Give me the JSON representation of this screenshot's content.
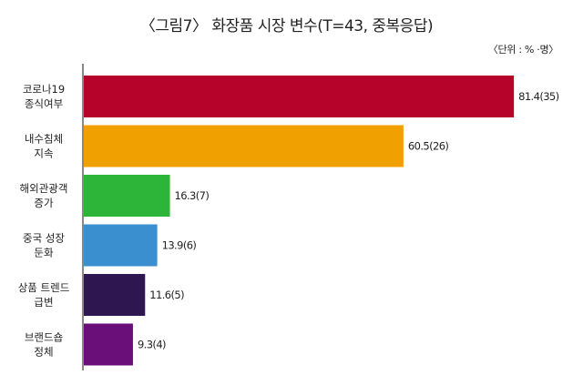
{
  "title": "〈그림7〉 화장품 시장 변수(T=43, 중복응답)",
  "unit": "〈단위 : % ·명〉",
  "chart_data": {
    "type": "bar",
    "orientation": "horizontal",
    "title": "〈그림7〉 화장품 시장 변수(T=43, 중복응답)",
    "categories": [
      [
        "코로나19",
        "종식여부"
      ],
      [
        "내수침체",
        "지속"
      ],
      [
        "해외관광객",
        "증가"
      ],
      [
        "중국 성장",
        "둔화"
      ],
      [
        "상품 트렌드",
        "급변"
      ],
      [
        "브랜드숍",
        "정체"
      ]
    ],
    "values": [
      81.4,
      60.5,
      16.3,
      13.9,
      11.6,
      9.3
    ],
    "counts": [
      35,
      26,
      7,
      6,
      5,
      4
    ],
    "value_labels": [
      "81.4(35)",
      "60.5(26)",
      "16.3(7)",
      "13.9(6)",
      "11.6(5)",
      "9.3(4)"
    ],
    "colors": [
      "#b5032a",
      "#f0a000",
      "#2db53a",
      "#3a8fcf",
      "#2e1650",
      "#6a0f7a"
    ],
    "xlim": [
      0,
      100
    ],
    "grid": false,
    "legend": "none"
  }
}
